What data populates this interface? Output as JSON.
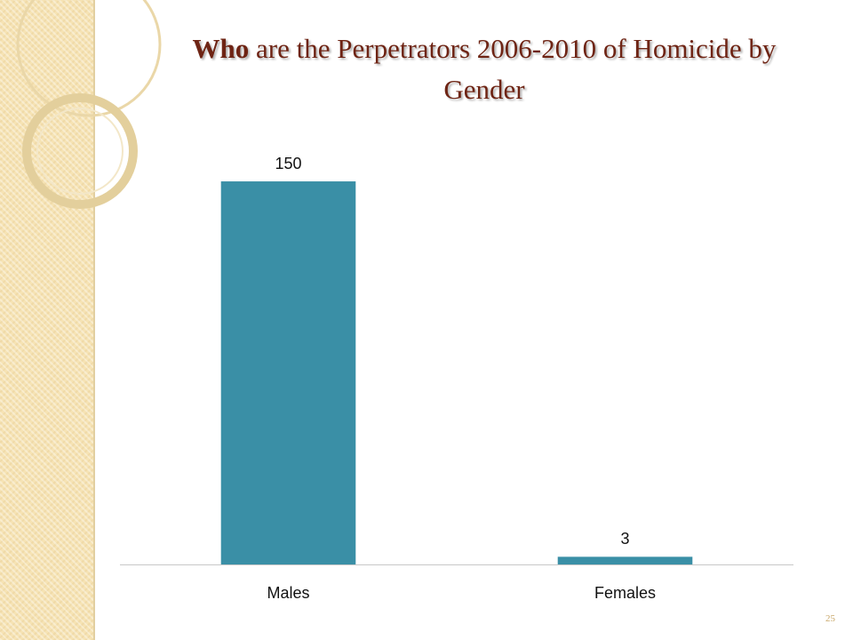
{
  "chart_data": {
    "type": "bar",
    "title_bold": "Who",
    "title": "are the Perpetrators 2006-2010 of Homicide by Gender",
    "categories": [
      "Males",
      "Females"
    ],
    "values": [
      150,
      3
    ],
    "color": "#3a8fa6",
    "ylim": [
      0,
      160
    ]
  },
  "slide": {
    "page_number": "25"
  }
}
